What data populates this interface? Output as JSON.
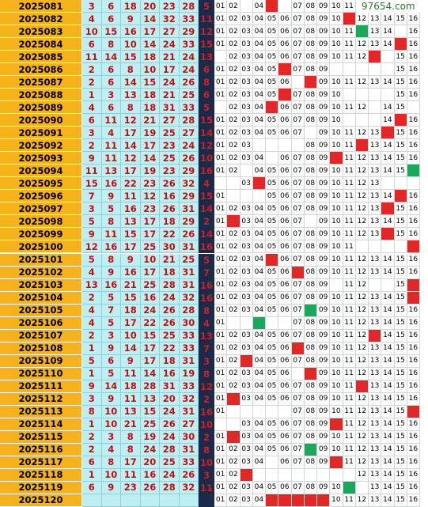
{
  "watermark": "97654.com",
  "rows": [
    {
      "issue": "2025081",
      "reds": [
        "3",
        "6",
        "18",
        "20",
        "23",
        "28"
      ],
      "blue": "5",
      "grid": [
        "01",
        "02",
        "",
        "04",
        "R",
        "",
        "07",
        "08",
        "09",
        "10",
        "11",
        "12",
        "",
        "",
        "",
        ""
      ]
    },
    {
      "issue": "2025082",
      "reds": [
        "4",
        "6",
        "9",
        "14",
        "32",
        "33"
      ],
      "blue": "11",
      "grid": [
        "01",
        "02",
        "03",
        "04",
        "05",
        "06",
        "07",
        "08",
        "09",
        "10",
        "R",
        "12",
        "13",
        "14",
        "15",
        "16"
      ]
    },
    {
      "issue": "2025083",
      "reds": [
        "10",
        "15",
        "16",
        "17",
        "27",
        "29"
      ],
      "blue": "12",
      "grid": [
        "01",
        "02",
        "03",
        "04",
        "05",
        "06",
        "07",
        "08",
        "09",
        "10",
        "11",
        "G",
        "13",
        "14",
        "",
        "16"
      ]
    },
    {
      "issue": "2025084",
      "reds": [
        "6",
        "8",
        "10",
        "14",
        "24",
        "33"
      ],
      "blue": "15",
      "grid": [
        "01",
        "02",
        "03",
        "04",
        "05",
        "06",
        "07",
        "08",
        "09",
        "10",
        "11",
        "12",
        "13",
        "14",
        "R",
        "16"
      ]
    },
    {
      "issue": "2025085",
      "reds": [
        "11",
        "14",
        "15",
        "18",
        "21",
        "24"
      ],
      "blue": "13",
      "grid": [
        "",
        "02",
        "03",
        "04",
        "05",
        "06",
        "07",
        "08",
        "09",
        "10",
        "11",
        "12",
        "R",
        "",
        "15",
        "16"
      ]
    },
    {
      "issue": "2025086",
      "reds": [
        "2",
        "6",
        "8",
        "10",
        "17",
        "24"
      ],
      "blue": "6",
      "grid": [
        "01",
        "02",
        "03",
        "04",
        "05",
        "R",
        "07",
        "08",
        "09",
        "",
        "",
        "",
        "",
        "",
        "15",
        "16"
      ]
    },
    {
      "issue": "2025087",
      "reds": [
        "2",
        "6",
        "14",
        "15",
        "24",
        "26"
      ],
      "blue": "8",
      "grid": [
        "01",
        "02",
        "03",
        "04",
        "05",
        "06",
        "",
        "R",
        "09",
        "10",
        "11",
        "12",
        "13",
        "14",
        "15",
        "16"
      ]
    },
    {
      "issue": "2025088",
      "reds": [
        "1",
        "3",
        "13",
        "18",
        "21",
        "25"
      ],
      "blue": "6",
      "grid": [
        "01",
        "02",
        "03",
        "04",
        "05",
        "R",
        "07",
        "08",
        "09",
        "10",
        "",
        "",
        "",
        "",
        "15",
        "16"
      ]
    },
    {
      "issue": "2025089",
      "reds": [
        "4",
        "6",
        "8",
        "18",
        "31",
        "33"
      ],
      "blue": "5",
      "grid": [
        "",
        "02",
        "03",
        "04",
        "R",
        "06",
        "07",
        "08",
        "09",
        "10",
        "11",
        "12",
        "",
        "14",
        "15",
        ""
      ]
    },
    {
      "issue": "2025090",
      "reds": [
        "6",
        "11",
        "12",
        "21",
        "27",
        "28"
      ],
      "blue": "15",
      "grid": [
        "01",
        "02",
        "03",
        "04",
        "05",
        "06",
        "07",
        "08",
        "09",
        "10",
        "",
        "",
        "",
        "14",
        "R",
        "16"
      ]
    },
    {
      "issue": "2025091",
      "reds": [
        "3",
        "4",
        "17",
        "19",
        "25",
        "27"
      ],
      "blue": "14",
      "grid": [
        "01",
        "02",
        "03",
        "04",
        "05",
        "06",
        "07",
        "",
        "09",
        "10",
        "11",
        "12",
        "13",
        "R",
        "15",
        "16"
      ]
    },
    {
      "issue": "2025092",
      "reds": [
        "2",
        "11",
        "14",
        "17",
        "23",
        "24"
      ],
      "blue": "12",
      "grid": [
        "01",
        "02",
        "03",
        "",
        "",
        "",
        "",
        "08",
        "09",
        "10",
        "11",
        "R",
        "13",
        "14",
        "15",
        "16"
      ]
    },
    {
      "issue": "2025093",
      "reds": [
        "9",
        "11",
        "12",
        "14",
        "25",
        "26"
      ],
      "blue": "10",
      "grid": [
        "01",
        "02",
        "03",
        "04",
        "",
        "06",
        "07",
        "08",
        "09",
        "R",
        "11",
        "12",
        "13",
        "14",
        "15",
        "16"
      ]
    },
    {
      "issue": "2025094",
      "reds": [
        "11",
        "13",
        "17",
        "19",
        "23",
        "29"
      ],
      "blue": "16",
      "grid": [
        "01",
        "02",
        "",
        "04",
        "05",
        "06",
        "07",
        "08",
        "09",
        "10",
        "11",
        "12",
        "13",
        "14",
        "15",
        "G"
      ]
    },
    {
      "issue": "2025095",
      "reds": [
        "15",
        "16",
        "22",
        "23",
        "26",
        "32"
      ],
      "blue": "4",
      "grid": [
        "",
        "",
        "03",
        "R",
        "05",
        "06",
        "07",
        "08",
        "09",
        "10",
        "11",
        "12",
        "13",
        "",
        "",
        ""
      ]
    },
    {
      "issue": "2025096",
      "reds": [
        "7",
        "9",
        "11",
        "12",
        "16",
        "29"
      ],
      "blue": "15",
      "grid": [
        "01",
        "",
        "",
        "",
        "05",
        "06",
        "07",
        "08",
        "09",
        "10",
        "11",
        "12",
        "13",
        "14",
        "R",
        "16"
      ]
    },
    {
      "issue": "2025097",
      "reds": [
        "3",
        "5",
        "16",
        "23",
        "26",
        "31"
      ],
      "blue": "14",
      "grid": [
        "01",
        "02",
        "03",
        "04",
        "05",
        "06",
        "07",
        "08",
        "09",
        "10",
        "11",
        "12",
        "13",
        "R",
        "15",
        "16"
      ]
    },
    {
      "issue": "2025098",
      "reds": [
        "5",
        "8",
        "13",
        "17",
        "18",
        "29"
      ],
      "blue": "2",
      "grid": [
        "01",
        "R",
        "03",
        "04",
        "05",
        "06",
        "07",
        "",
        "09",
        "10",
        "11",
        "12",
        "13",
        "14",
        "15",
        "16"
      ]
    },
    {
      "issue": "2025099",
      "reds": [
        "9",
        "11",
        "15",
        "17",
        "22",
        "26"
      ],
      "blue": "14",
      "grid": [
        "01",
        "02",
        "03",
        "04",
        "05",
        "06",
        "07",
        "08",
        "09",
        "10",
        "11",
        "12",
        "13",
        "R",
        "15",
        "16"
      ]
    },
    {
      "issue": "2025100",
      "reds": [
        "12",
        "16",
        "17",
        "25",
        "30",
        "31"
      ],
      "blue": "16",
      "grid": [
        "01",
        "02",
        "03",
        "04",
        "05",
        "06",
        "07",
        "08",
        "09",
        "10",
        "11",
        "",
        "",
        "",
        "",
        "R"
      ]
    },
    {
      "issue": "2025101",
      "reds": [
        "5",
        "8",
        "9",
        "10",
        "21",
        "25"
      ],
      "blue": "5",
      "grid": [
        "01",
        "02",
        "03",
        "04",
        "R",
        "06",
        "07",
        "08",
        "09",
        "10",
        "11",
        "12",
        "13",
        "14",
        "15",
        "16"
      ]
    },
    {
      "issue": "2025102",
      "reds": [
        "4",
        "9",
        "16",
        "17",
        "18",
        "31"
      ],
      "blue": "7",
      "grid": [
        "01",
        "02",
        "03",
        "04",
        "05",
        "06",
        "R",
        "08",
        "09",
        "10",
        "11",
        "12",
        "13",
        "14",
        "15",
        "16"
      ]
    },
    {
      "issue": "2025103",
      "reds": [
        "13",
        "16",
        "21",
        "25",
        "28",
        "31"
      ],
      "blue": "16",
      "grid": [
        "01",
        "02",
        "03",
        "04",
        "05",
        "06",
        "07",
        "08",
        "09",
        "",
        "11",
        "12",
        "",
        "",
        "15",
        "R"
      ]
    },
    {
      "issue": "2025104",
      "reds": [
        "2",
        "5",
        "15",
        "16",
        "24",
        "32"
      ],
      "blue": "16",
      "grid": [
        "01",
        "02",
        "03",
        "04",
        "05",
        "06",
        "07",
        "08",
        "09",
        "10",
        "11",
        "12",
        "13",
        "14",
        "15",
        "R"
      ]
    },
    {
      "issue": "2025105",
      "reds": [
        "4",
        "7",
        "18",
        "24",
        "26",
        "28"
      ],
      "blue": "8",
      "grid": [
        "01",
        "02",
        "03",
        "04",
        "05",
        "06",
        "07",
        "G",
        "09",
        "10",
        "11",
        "12",
        "13",
        "14",
        "15",
        "16"
      ]
    },
    {
      "issue": "2025106",
      "reds": [
        "4",
        "5",
        "17",
        "22",
        "26",
        "30"
      ],
      "blue": "4",
      "grid": [
        "01",
        "",
        "",
        "G",
        "",
        "",
        "07",
        "08",
        "09",
        "10",
        "11",
        "12",
        "13",
        "14",
        "15",
        "16"
      ]
    },
    {
      "issue": "2025107",
      "reds": [
        "2",
        "3",
        "10",
        "15",
        "25",
        "33"
      ],
      "blue": "13",
      "grid": [
        "01",
        "02",
        "03",
        "04",
        "05",
        "06",
        "07",
        "08",
        "09",
        "10",
        "11",
        "12",
        "R",
        "14",
        "15",
        "16"
      ]
    },
    {
      "issue": "2025108",
      "reds": [
        "1",
        "9",
        "14",
        "17",
        "22",
        "33"
      ],
      "blue": "7",
      "grid": [
        "01",
        "02",
        "03",
        "04",
        "05",
        "06",
        "R",
        "08",
        "09",
        "10",
        "11",
        "12",
        "13",
        "14",
        "15",
        "16"
      ]
    },
    {
      "issue": "2025109",
      "reds": [
        "5",
        "6",
        "9",
        "17",
        "18",
        "31"
      ],
      "blue": "3",
      "grid": [
        "01",
        "02",
        "R",
        "04",
        "05",
        "06",
        "07",
        "08",
        "09",
        "10",
        "11",
        "12",
        "13",
        "14",
        "15",
        "16"
      ]
    },
    {
      "issue": "2025110",
      "reds": [
        "1",
        "5",
        "11",
        "14",
        "16",
        "19"
      ],
      "blue": "8",
      "grid": [
        "01",
        "02",
        "03",
        "04",
        "05",
        "06",
        "",
        "R",
        "09",
        "10",
        "11",
        "12",
        "13",
        "14",
        "15",
        "16"
      ]
    },
    {
      "issue": "2025111",
      "reds": [
        "9",
        "14",
        "18",
        "28",
        "31",
        "33"
      ],
      "blue": "12",
      "grid": [
        "01",
        "02",
        "03",
        "04",
        "05",
        "06",
        "07",
        "08",
        "09",
        "10",
        "11",
        "R",
        "13",
        "14",
        "15",
        "16"
      ]
    },
    {
      "issue": "2025112",
      "reds": [
        "3",
        "9",
        "11",
        "13",
        "20",
        "32"
      ],
      "blue": "2",
      "grid": [
        "01",
        "R",
        "03",
        "04",
        "05",
        "06",
        "07",
        "08",
        "09",
        "10",
        "11",
        "12",
        "13",
        "14",
        "15",
        "16"
      ]
    },
    {
      "issue": "2025113",
      "reds": [
        "8",
        "10",
        "13",
        "15",
        "24",
        "31"
      ],
      "blue": "16",
      "grid": [
        "01",
        "",
        "",
        "",
        "",
        "",
        "07",
        "08",
        "09",
        "10",
        "11",
        "12",
        "13",
        "14",
        "15",
        "R"
      ]
    },
    {
      "issue": "2025114",
      "reds": [
        "1",
        "10",
        "21",
        "25",
        "26",
        "27"
      ],
      "blue": "10",
      "grid": [
        "",
        "",
        "03",
        "04",
        "05",
        "06",
        "07",
        "08",
        "09",
        "R",
        "11",
        "12",
        "13",
        "14",
        "15",
        "16"
      ]
    },
    {
      "issue": "2025115",
      "reds": [
        "2",
        "3",
        "8",
        "19",
        "24",
        "30"
      ],
      "blue": "2",
      "grid": [
        "01",
        "R",
        "03",
        "04",
        "05",
        "06",
        "07",
        "08",
        "09",
        "10",
        "11",
        "12",
        "13",
        "14",
        "15",
        "16"
      ]
    },
    {
      "issue": "2025116",
      "reds": [
        "2",
        "4",
        "8",
        "24",
        "28",
        "31"
      ],
      "blue": "8",
      "grid": [
        "01",
        "02",
        "03",
        "04",
        "05",
        "06",
        "07",
        "G",
        "09",
        "10",
        "11",
        "12",
        "13",
        "14",
        "15",
        "16"
      ]
    },
    {
      "issue": "2025117",
      "reds": [
        "6",
        "8",
        "17",
        "20",
        "25",
        "33"
      ],
      "blue": "10",
      "grid": [
        "01",
        "02",
        "03",
        "04",
        "",
        "06",
        "07",
        "08",
        "09",
        "R",
        "11",
        "12",
        "13",
        "14",
        "15",
        "16"
      ]
    },
    {
      "issue": "2025118",
      "reds": [
        "1",
        "10",
        "11",
        "16",
        "24",
        "26"
      ],
      "blue": "3",
      "grid": [
        "01",
        "02",
        "R",
        "",
        "",
        "",
        "",
        "",
        "",
        "",
        "",
        "12",
        "13",
        "14",
        "15",
        "16"
      ]
    },
    {
      "issue": "2025119",
      "reds": [
        "6",
        "9",
        "23",
        "26",
        "28",
        "32"
      ],
      "blue": "11",
      "grid": [
        "01",
        "02",
        "03",
        "04",
        "05",
        "06",
        "07",
        "08",
        "09",
        "10",
        "G",
        "",
        "13",
        "14",
        "15",
        "16"
      ]
    },
    {
      "issue": "2025120",
      "reds": [
        "",
        "",
        "",
        "",
        "",
        ""
      ],
      "blue": "",
      "grid": [
        "01",
        "02",
        "03",
        "04",
        "R",
        "R",
        "R",
        "R",
        "R",
        "10",
        "11",
        "12",
        "13",
        "14",
        "15",
        "16"
      ]
    }
  ]
}
